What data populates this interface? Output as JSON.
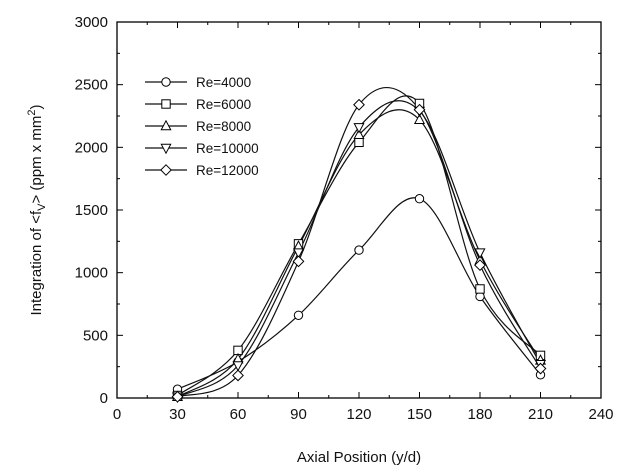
{
  "chart_data": {
    "type": "line",
    "title": "",
    "xlabel": "Axial Position (y/d)",
    "ylabel_parts": {
      "pre": "Integration of <f",
      "sub": "V",
      "mid": "> (ppm x mm",
      "sup": "2",
      "post": ")"
    },
    "xlim": [
      0,
      240
    ],
    "ylim": [
      0,
      3000
    ],
    "xticks": [
      0,
      30,
      60,
      90,
      120,
      150,
      180,
      210,
      240
    ],
    "yticks": [
      0,
      500,
      1000,
      1500,
      2000,
      2500,
      3000
    ],
    "grid": false,
    "legend_position": "top-left",
    "x": [
      30,
      60,
      90,
      120,
      150,
      180,
      210
    ],
    "series": [
      {
        "name": "Re=4000",
        "marker": "circle",
        "values": [
          70,
          290,
          660,
          1180,
          1590,
          810,
          185
        ]
      },
      {
        "name": "Re=6000",
        "marker": "square",
        "values": [
          20,
          380,
          1230,
          2040,
          2350,
          870,
          340
        ]
      },
      {
        "name": "Re=8000",
        "marker": "triangle-up",
        "values": [
          10,
          310,
          1210,
          2100,
          2220,
          1100,
          300
        ]
      },
      {
        "name": "Re=10000",
        "marker": "triangle-down",
        "values": [
          10,
          260,
          1160,
          2160,
          2290,
          1160,
          270
        ]
      },
      {
        "name": "Re=12000",
        "marker": "diamond",
        "values": [
          10,
          180,
          1090,
          2340,
          2300,
          1060,
          235
        ]
      }
    ]
  }
}
